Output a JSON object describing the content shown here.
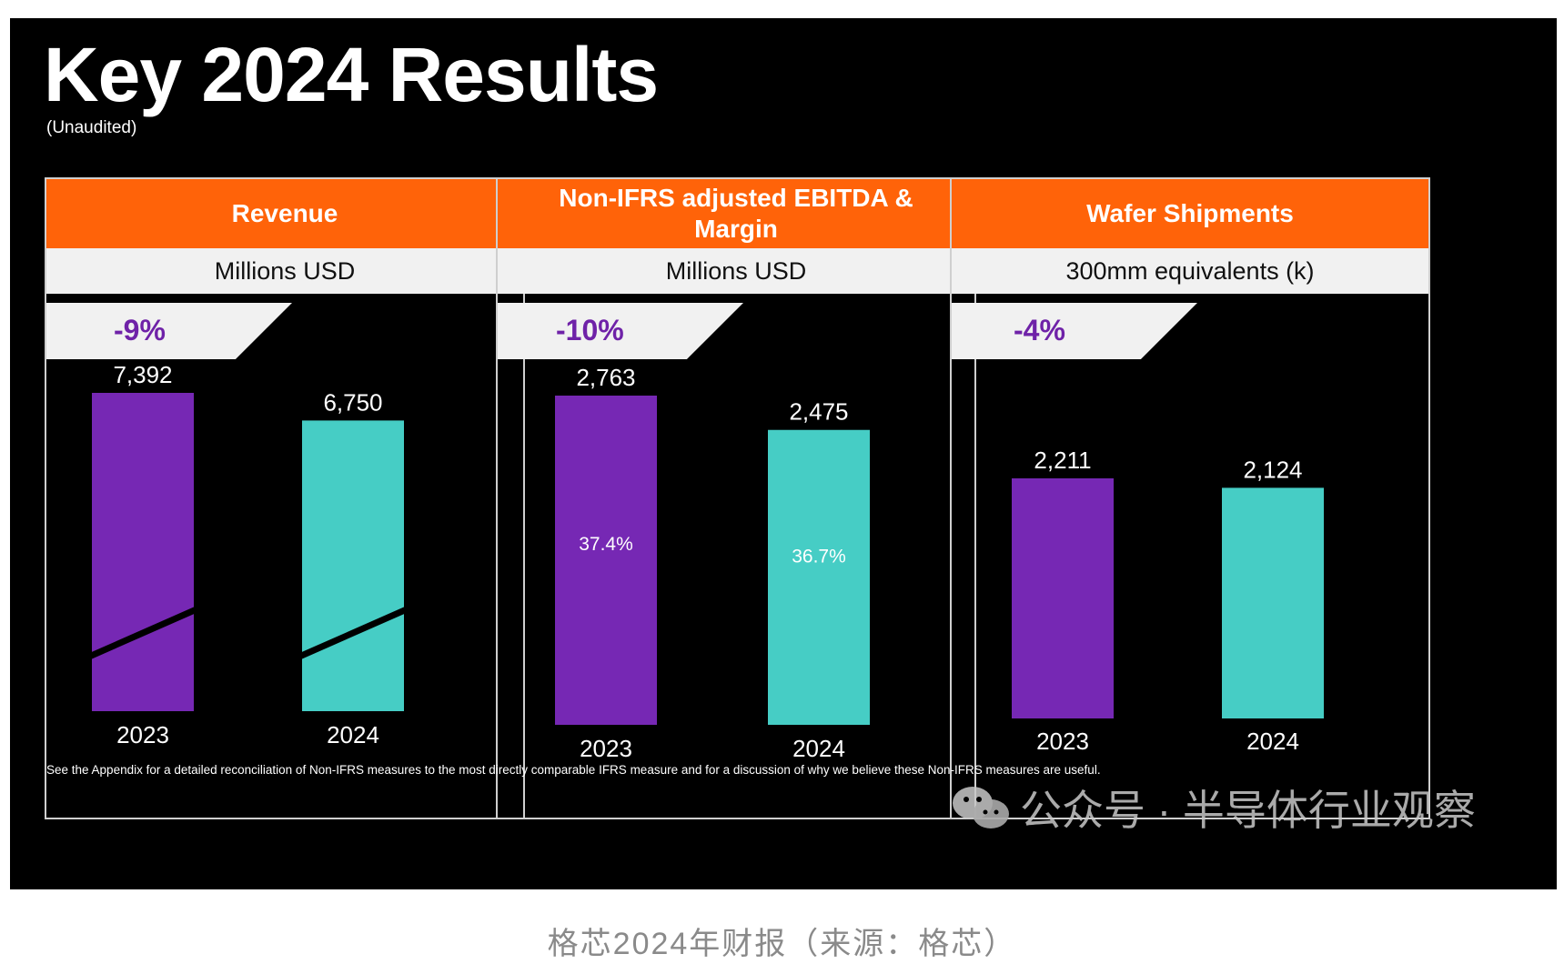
{
  "slide": {
    "title": "Key 2024 Results",
    "subtitle": "(Unaudited)",
    "footnote": "See the Appendix for a detailed reconciliation of Non-IFRS measures to the most directly comparable IFRS measure and for a discussion of why we believe these Non-IFRS measures are useful."
  },
  "watermark": {
    "text": "公众号 · 半导体行业观察",
    "icon": "wechat-icon"
  },
  "caption": "格芯2024年财报（来源：格芯）",
  "colors": {
    "accent": "#ff6309",
    "purple": "#7628b4",
    "teal": "#46cdc5",
    "change_text": "#6f22a8"
  },
  "chart_data": [
    {
      "type": "bar",
      "title": "Revenue",
      "ylabel": "Millions USD",
      "change": "-9%",
      "categories": [
        "2023",
        "2024"
      ],
      "values": [
        7392,
        6750
      ],
      "value_labels": [
        "7,392",
        "6,750"
      ],
      "axis_break": true,
      "ylim": [
        0,
        7392
      ]
    },
    {
      "type": "bar",
      "title": "Non-IFRS adjusted EBITDA & Margin",
      "ylabel": "Millions USD",
      "change": "-10%",
      "categories": [
        "2023",
        "2024"
      ],
      "values": [
        2763,
        2475
      ],
      "value_labels": [
        "2,763",
        "2,475"
      ],
      "inner_labels": [
        "37.4%",
        "36.7%"
      ],
      "ylim": [
        0,
        2763
      ]
    },
    {
      "type": "bar",
      "title": "Wafer Shipments",
      "ylabel": "300mm equivalents (k)",
      "change": "-4%",
      "categories": [
        "2023",
        "2024"
      ],
      "values": [
        2211,
        2124
      ],
      "value_labels": [
        "2,211",
        "2,124"
      ],
      "ylim": [
        0,
        2211
      ]
    }
  ]
}
